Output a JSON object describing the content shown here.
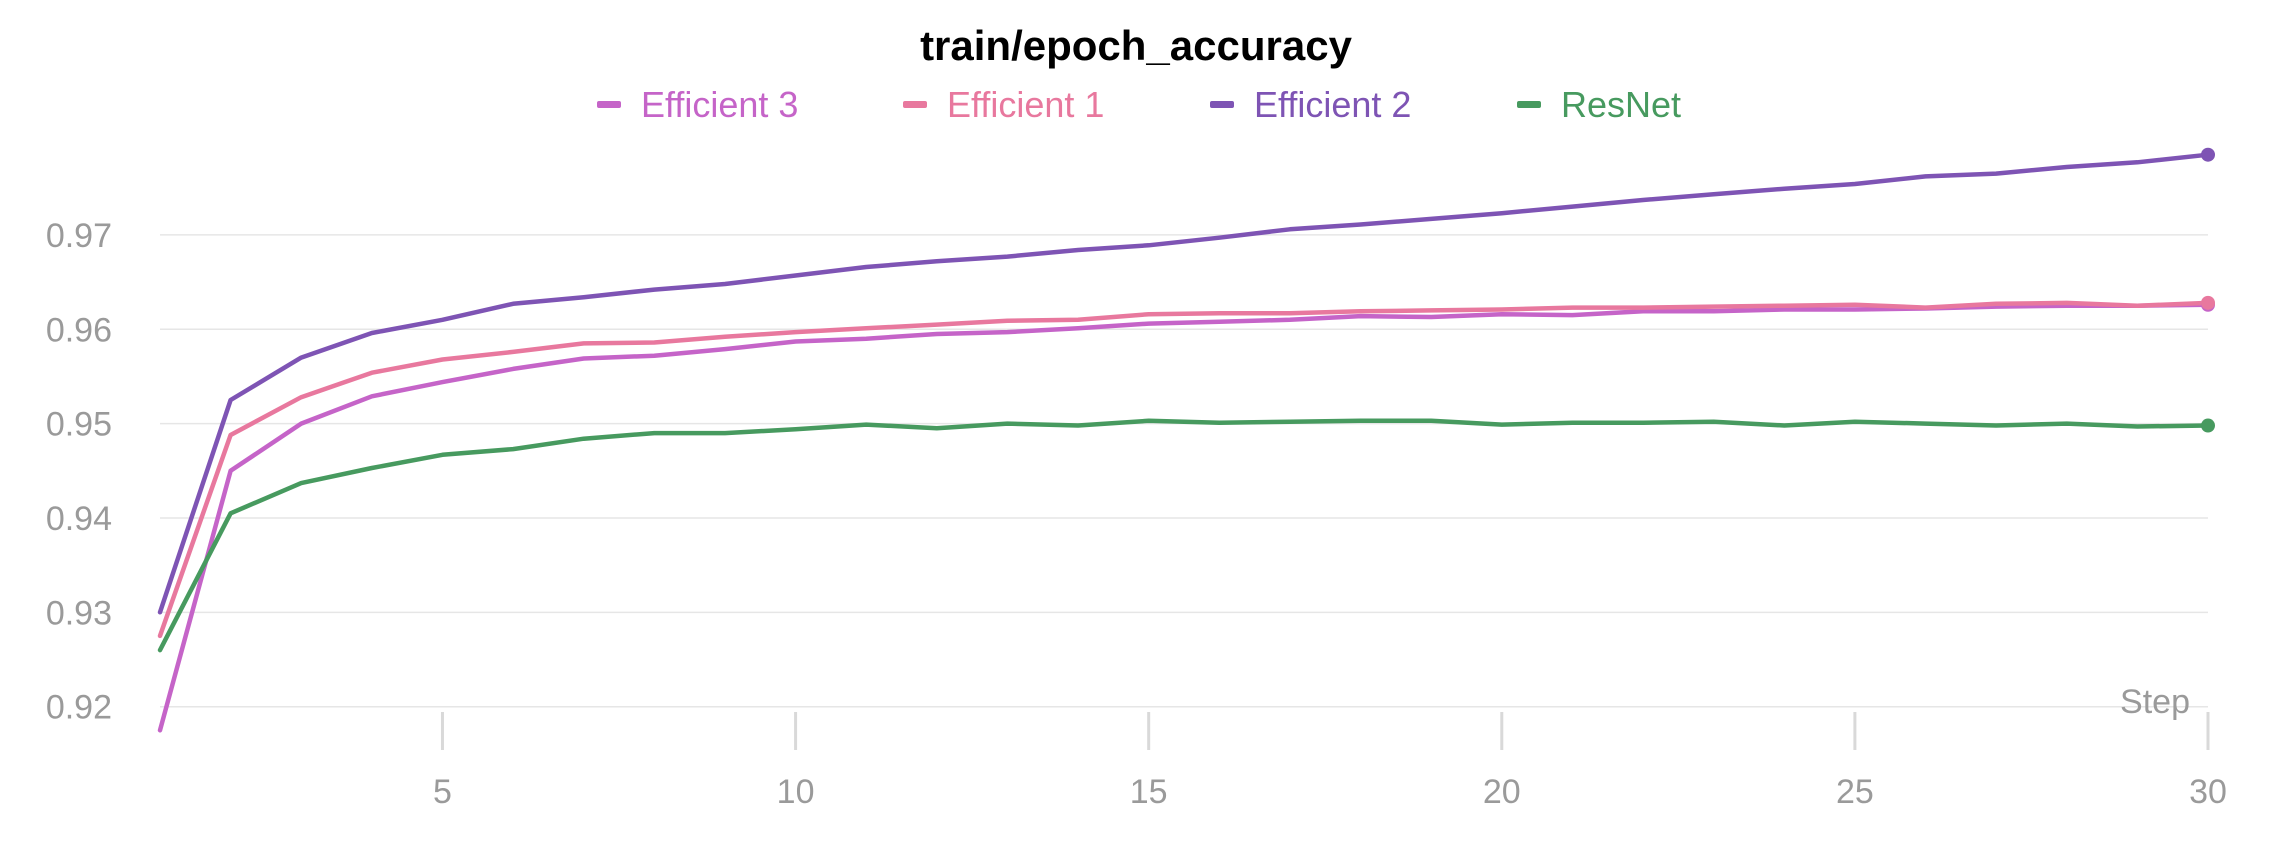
{
  "chart_data": {
    "type": "line",
    "title": "train/epoch_accuracy",
    "xlabel": "Step",
    "ylabel": "",
    "xlim": [
      1,
      30
    ],
    "ylim": [
      0.917,
      0.979
    ],
    "x_ticks": [
      5,
      10,
      15,
      20,
      25,
      30
    ],
    "y_ticks": [
      0.92,
      0.93,
      0.94,
      0.95,
      0.96,
      0.97
    ],
    "y_tick_labels": [
      "0.92",
      "0.93",
      "0.94",
      "0.95",
      "0.96",
      "0.97"
    ],
    "grid": true,
    "legend": "top",
    "x": [
      1,
      2,
      3,
      4,
      5,
      6,
      7,
      8,
      9,
      10,
      11,
      12,
      13,
      14,
      15,
      16,
      17,
      18,
      19,
      20,
      21,
      22,
      23,
      24,
      25,
      26,
      27,
      28,
      29,
      30
    ],
    "series": [
      {
        "name": "Efficient 3",
        "color": "#c564c8",
        "values": [
          0.9175,
          0.945,
          0.95,
          0.9529,
          0.9544,
          0.9558,
          0.9569,
          0.9572,
          0.9579,
          0.9587,
          0.959,
          0.9595,
          0.9597,
          0.9601,
          0.9606,
          0.9608,
          0.961,
          0.9614,
          0.9613,
          0.9616,
          0.9615,
          0.9619,
          0.9619,
          0.9621,
          0.9621,
          0.9622,
          0.9624,
          0.9625,
          0.9625,
          0.9626
        ]
      },
      {
        "name": "Efficient 1",
        "color": "#e8789e",
        "values": [
          0.9275,
          0.9488,
          0.9528,
          0.9554,
          0.9568,
          0.9576,
          0.9585,
          0.9586,
          0.9592,
          0.9597,
          0.9601,
          0.9605,
          0.9609,
          0.961,
          0.9616,
          0.9617,
          0.9617,
          0.9619,
          0.962,
          0.9621,
          0.9623,
          0.9623,
          0.9624,
          0.9625,
          0.9626,
          0.9623,
          0.9627,
          0.9628,
          0.9625,
          0.9628
        ]
      },
      {
        "name": "Efficient 2",
        "color": "#7e54b4",
        "values": [
          0.93,
          0.9525,
          0.957,
          0.9596,
          0.961,
          0.9627,
          0.9634,
          0.9642,
          0.9648,
          0.9657,
          0.9666,
          0.9672,
          0.9677,
          0.9684,
          0.9689,
          0.9697,
          0.9706,
          0.9711,
          0.9717,
          0.9723,
          0.973,
          0.9737,
          0.9743,
          0.9749,
          0.9754,
          0.9762,
          0.9765,
          0.9772,
          0.9777,
          0.9785
        ]
      },
      {
        "name": "ResNet",
        "color": "#479a5f",
        "values": [
          0.926,
          0.9405,
          0.9437,
          0.9453,
          0.9467,
          0.9473,
          0.9484,
          0.949,
          0.949,
          0.9494,
          0.9499,
          0.9495,
          0.95,
          0.9498,
          0.9503,
          0.9501,
          0.9502,
          0.9503,
          0.9503,
          0.9499,
          0.9501,
          0.9501,
          0.9502,
          0.9498,
          0.9502,
          0.95,
          0.9498,
          0.95,
          0.9497,
          0.9498
        ]
      }
    ]
  }
}
